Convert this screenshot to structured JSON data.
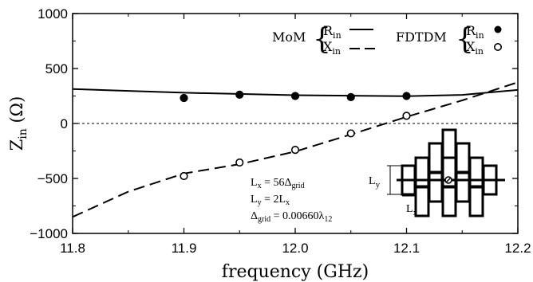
{
  "chart_data": {
    "type": "line",
    "xlabel": "frequency (GHz)",
    "ylabel": {
      "main": "Z",
      "sub": "in",
      "unit": "(Ω)"
    },
    "xlim": [
      11.8,
      12.2
    ],
    "ylim": [
      -1000,
      1000
    ],
    "x_ticks": [
      "11.8",
      "11.9",
      "12.0",
      "12.1",
      "12.2"
    ],
    "y_ticks": [
      "1000",
      "500",
      "0",
      "−500",
      "−1000"
    ],
    "x_tick_values": [
      11.8,
      11.9,
      12.0,
      12.1,
      12.2
    ],
    "y_tick_values": [
      1000,
      500,
      0,
      -500,
      -1000
    ],
    "zero_line": "dotted",
    "legend": {
      "placement": "top",
      "groups": [
        {
          "name": "MoM",
          "entries": [
            {
              "main": "R",
              "sub": "in",
              "style": "solid"
            },
            {
              "main": "X",
              "sub": "in",
              "style": "dashed"
            }
          ]
        },
        {
          "name": "FDTDM",
          "entries": [
            {
              "main": "R",
              "sub": "in",
              "style": "filled-circle"
            },
            {
              "main": "X",
              "sub": "in",
              "style": "open-circle"
            }
          ]
        }
      ]
    },
    "series": [
      {
        "name": "MoM R_in",
        "style": "solid",
        "x": [
          11.8,
          11.9,
          12.0,
          12.1,
          12.15,
          12.2
        ],
        "y": [
          313,
          280,
          257,
          248,
          260,
          305
        ]
      },
      {
        "name": "MoM X_in",
        "style": "dashed",
        "x": [
          11.8,
          11.85,
          11.9,
          11.95,
          12.0,
          12.05,
          12.1,
          12.15,
          12.2
        ],
        "y": [
          -850,
          -620,
          -455,
          -370,
          -255,
          -100,
          60,
          210,
          375
        ]
      },
      {
        "name": "FDTDM R_in",
        "style": "filled-circle",
        "x": [
          11.9,
          11.95,
          12.0,
          12.05,
          12.1
        ],
        "y": [
          232,
          262,
          250,
          240,
          250
        ]
      },
      {
        "name": "FDTDM X_in",
        "style": "open-circle",
        "x": [
          11.9,
          11.95,
          12.0,
          12.05,
          12.1
        ],
        "y": [
          -478,
          -355,
          -240,
          -90,
          70
        ]
      }
    ],
    "annotations": [
      {
        "id": "lx",
        "main": "L",
        "sub": "x",
        "rest": " = 56Δ",
        "rest_sub": "grid"
      },
      {
        "id": "ly",
        "main": "L",
        "sub": "y",
        "rest": " = 2L",
        "rest_sub": "x"
      },
      {
        "id": "dg",
        "main": "Δ",
        "sub": "grid",
        "rest": " = 0.00660λ",
        "rest_sub": "12"
      }
    ],
    "inset_labels": {
      "ly": {
        "main": "L",
        "sub": "y"
      },
      "lx": {
        "main": "L",
        "sub": "x"
      }
    }
  }
}
